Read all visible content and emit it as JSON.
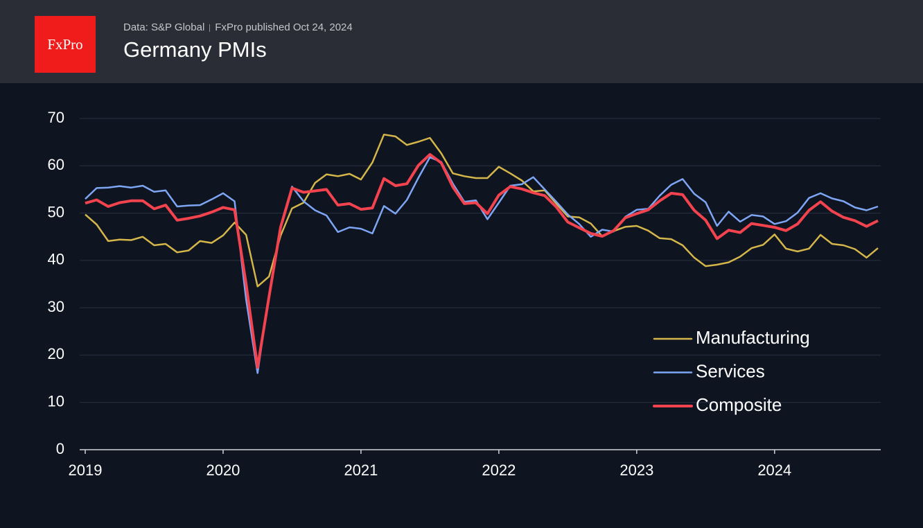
{
  "logo": "FxPro",
  "source": "Data: S&P Global",
  "published": "FxPro published Oct 24, 2024",
  "chart_data": {
    "type": "line",
    "title": "Germany PMIs",
    "x": [
      2019,
      2019.083,
      2019.167,
      2019.25,
      2019.333,
      2019.417,
      2019.5,
      2019.583,
      2019.667,
      2019.75,
      2019.833,
      2019.917,
      2020,
      2020.083,
      2020.167,
      2020.25,
      2020.333,
      2020.417,
      2020.5,
      2020.583,
      2020.667,
      2020.75,
      2020.833,
      2020.917,
      2021,
      2021.083,
      2021.167,
      2021.25,
      2021.333,
      2021.417,
      2021.5,
      2021.583,
      2021.667,
      2021.75,
      2021.833,
      2021.917,
      2022,
      2022.083,
      2022.167,
      2022.25,
      2022.333,
      2022.417,
      2022.5,
      2022.583,
      2022.667,
      2022.75,
      2022.833,
      2022.917,
      2023,
      2023.083,
      2023.167,
      2023.25,
      2023.333,
      2023.417,
      2023.5,
      2023.583,
      2023.667,
      2023.75,
      2023.833,
      2023.917,
      2024,
      2024.083,
      2024.167,
      2024.25,
      2024.333,
      2024.417,
      2024.5,
      2024.583,
      2024.667,
      2024.75
    ],
    "series": [
      {
        "name": "Manufacturing",
        "color": "#d4b64a",
        "width": 2.5,
        "values": [
          49.7,
          47.6,
          44.1,
          44.4,
          44.3,
          45.0,
          43.2,
          43.5,
          41.7,
          42.1,
          44.1,
          43.7,
          45.3,
          48.0,
          45.4,
          34.5,
          36.6,
          45.2,
          51.0,
          52.2,
          56.4,
          58.2,
          57.8,
          58.3,
          57.1,
          60.7,
          66.6,
          66.2,
          64.4,
          65.1,
          65.9,
          62.6,
          58.4,
          57.8,
          57.4,
          57.4,
          59.8,
          58.4,
          56.9,
          54.6,
          54.8,
          52.0,
          49.3,
          49.1,
          47.8,
          45.1,
          46.2,
          47.1,
          47.3,
          46.3,
          44.7,
          44.5,
          43.2,
          40.6,
          38.8,
          39.1,
          39.6,
          40.8,
          42.6,
          43.3,
          45.5,
          42.5,
          41.9,
          42.5,
          45.4,
          43.5,
          43.2,
          42.4,
          40.6,
          42.6
        ]
      },
      {
        "name": "Services",
        "color": "#7ea6f5",
        "width": 2.5,
        "values": [
          53.0,
          55.3,
          55.4,
          55.7,
          55.4,
          55.8,
          54.5,
          54.8,
          51.4,
          51.6,
          51.7,
          52.9,
          54.2,
          52.5,
          31.7,
          16.2,
          32.6,
          47.3,
          55.6,
          52.5,
          50.6,
          49.5,
          46.0,
          47.0,
          46.7,
          45.7,
          51.5,
          49.9,
          52.8,
          57.5,
          61.8,
          60.8,
          56.2,
          52.4,
          52.7,
          48.7,
          52.2,
          55.8,
          56.1,
          57.6,
          55.0,
          52.4,
          49.7,
          47.7,
          45.0,
          46.5,
          46.1,
          49.2,
          50.7,
          50.9,
          53.7,
          56.0,
          57.2,
          54.1,
          52.3,
          47.3,
          50.3,
          48.2,
          49.6,
          49.3,
          47.7,
          48.3,
          50.1,
          53.2,
          54.2,
          53.1,
          52.5,
          51.2,
          50.6,
          51.4
        ]
      },
      {
        "name": "Composite",
        "color": "#f2434f",
        "width": 4,
        "values": [
          52.1,
          52.8,
          51.4,
          52.2,
          52.6,
          52.6,
          50.9,
          51.7,
          48.5,
          48.9,
          49.4,
          50.2,
          51.2,
          50.7,
          35.0,
          17.4,
          32.3,
          47.0,
          55.3,
          54.4,
          54.7,
          55.0,
          51.7,
          52.0,
          50.8,
          51.1,
          57.3,
          55.8,
          56.2,
          60.1,
          62.4,
          60.6,
          55.5,
          52.0,
          52.2,
          49.9,
          53.8,
          55.6,
          55.1,
          54.3,
          53.7,
          51.3,
          48.1,
          46.9,
          45.7,
          45.1,
          46.3,
          49.0,
          49.9,
          50.7,
          52.6,
          54.2,
          53.9,
          50.6,
          48.5,
          44.6,
          46.4,
          45.9,
          47.8,
          47.4,
          47.0,
          46.3,
          47.7,
          50.6,
          52.4,
          50.4,
          49.1,
          48.4,
          47.2,
          48.4
        ]
      }
    ],
    "xlim": [
      2019,
      2024.77
    ],
    "xticks": [
      2019,
      2020,
      2021,
      2022,
      2023,
      2024
    ],
    "ylim": [
      0,
      70
    ],
    "yticks": [
      0,
      10,
      20,
      30,
      40,
      50,
      60,
      70
    ],
    "grid": true,
    "legend": "lower right"
  }
}
